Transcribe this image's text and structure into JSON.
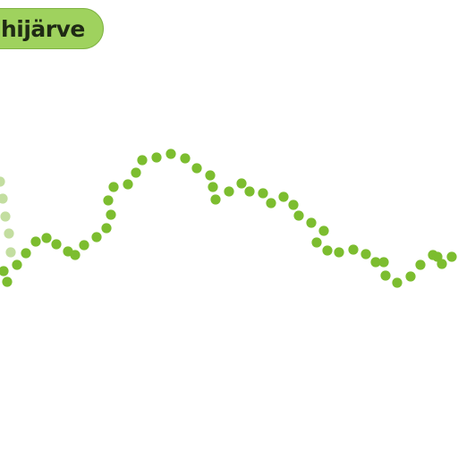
{
  "label": {
    "text": "hijärve"
  },
  "colors": {
    "accent": "#7cbd2f",
    "accent_faded": "#c3dea0",
    "pill_fill": "#9fd25e",
    "pill_border": "#7fb343",
    "text": "#1f2a14",
    "background": "#ffffff"
  },
  "icons": {
    "trail": "dotted-trail-icon"
  }
}
